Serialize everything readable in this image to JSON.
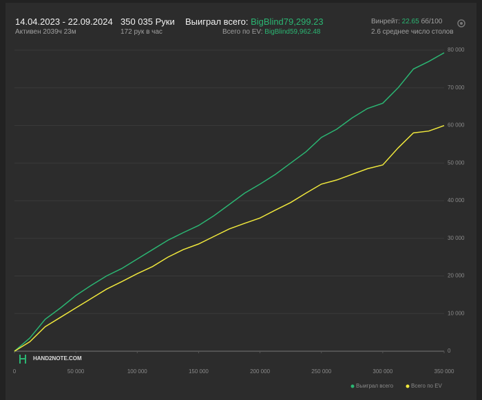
{
  "header": {
    "date_range": "14.04.2023 - 22.09.2024",
    "hands": "350 035 Руки",
    "won_label": "Выиграл всего:",
    "won_value": "BigBlind79,299.23",
    "active": "Активен 2039ч 23м",
    "per_hour": "172 рук в час",
    "ev_label": "Всего по EV:",
    "ev_value": "BigBlind59,962.48",
    "winrate_label": "Винрейт:",
    "winrate_value": "22.65",
    "winrate_unit": "бб/100",
    "tables": "2.6 среднее число столов",
    "logo": "HAND2NOTE.COM"
  },
  "chart_data": {
    "type": "line",
    "x": [
      0,
      12500,
      25000,
      37500,
      50000,
      62500,
      75000,
      87500,
      100000,
      112500,
      125000,
      137500,
      150000,
      162500,
      175000,
      187500,
      200000,
      212500,
      225000,
      237500,
      250000,
      262500,
      275000,
      287500,
      300000,
      312500,
      325000,
      337500,
      350000
    ],
    "series": [
      {
        "name": "Выиграл всего",
        "color": "#2bb673",
        "values": [
          0,
          3500,
          8500,
          11500,
          14800,
          17500,
          20000,
          22000,
          24500,
          27000,
          29500,
          31500,
          33400,
          36000,
          39000,
          42000,
          44400,
          47000,
          50000,
          53000,
          56800,
          59000,
          62000,
          64500,
          65900,
          70000,
          75000,
          77000,
          79299
        ]
      },
      {
        "name": "Всего по EV",
        "color": "#f0e83c",
        "values": [
          0,
          2500,
          6500,
          9000,
          11500,
          14000,
          16500,
          18500,
          20600,
          22500,
          25000,
          27000,
          28500,
          30500,
          32500,
          34000,
          35400,
          37500,
          39500,
          42000,
          44400,
          45500,
          47000,
          48500,
          49500,
          54000,
          58000,
          58500,
          59962
        ]
      }
    ],
    "xlim": [
      0,
      350000
    ],
    "xticks": [
      0,
      {
        "value": 50000,
        "label": "50 000"
      },
      {
        "value": 100000,
        "label": "100 000"
      },
      {
        "value": 150000,
        "label": "150 000"
      },
      {
        "value": 200000,
        "label": "200 000"
      },
      {
        "value": 250000,
        "label": "250 000"
      },
      {
        "value": 300000,
        "label": "300 000"
      },
      {
        "value": 350000,
        "label": "350 000"
      }
    ],
    "ylim": [
      0,
      80000
    ],
    "yticks": [
      0,
      {
        "value": 10000,
        "label": "10 000"
      },
      {
        "value": 20000,
        "label": "20 000"
      },
      {
        "value": 30000,
        "label": "30 000"
      },
      {
        "value": 40000,
        "label": "40 000"
      },
      {
        "value": 50000,
        "label": "50 000"
      },
      {
        "value": 60000,
        "label": "60 000"
      },
      {
        "value": 70000,
        "label": "70 000"
      },
      {
        "value": 80000,
        "label": "80 000"
      }
    ],
    "grid": true,
    "legend": "bottom-right"
  }
}
